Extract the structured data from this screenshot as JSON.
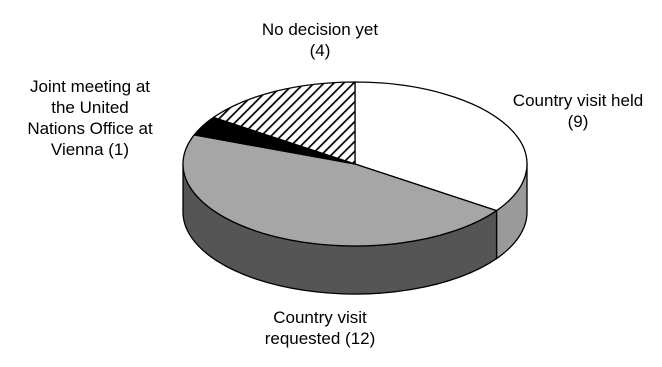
{
  "chart_data": {
    "type": "pie",
    "style": "3d",
    "slices": [
      {
        "label_lines": [
          "Country visit held",
          "(9)"
        ],
        "value": 9,
        "color": "#ffffff",
        "side_color": "#9a9a9a",
        "pattern": "none"
      },
      {
        "label_lines": [
          "Country visit",
          "requested (12)"
        ],
        "value": 12,
        "color": "#a6a6a6",
        "side_color": "#555555",
        "pattern": "none"
      },
      {
        "label_lines": [
          "Joint meeting at",
          "the United",
          "Nations Office at",
          "Vienna (1)"
        ],
        "value": 1,
        "color": "#000000",
        "side_color": "#000000",
        "pattern": "none"
      },
      {
        "label_lines": [
          "No decision yet",
          "(4)"
        ],
        "value": 4,
        "color": "#ffffff",
        "side_color": "#ffffff",
        "pattern": "diagonal-hatch"
      }
    ]
  }
}
